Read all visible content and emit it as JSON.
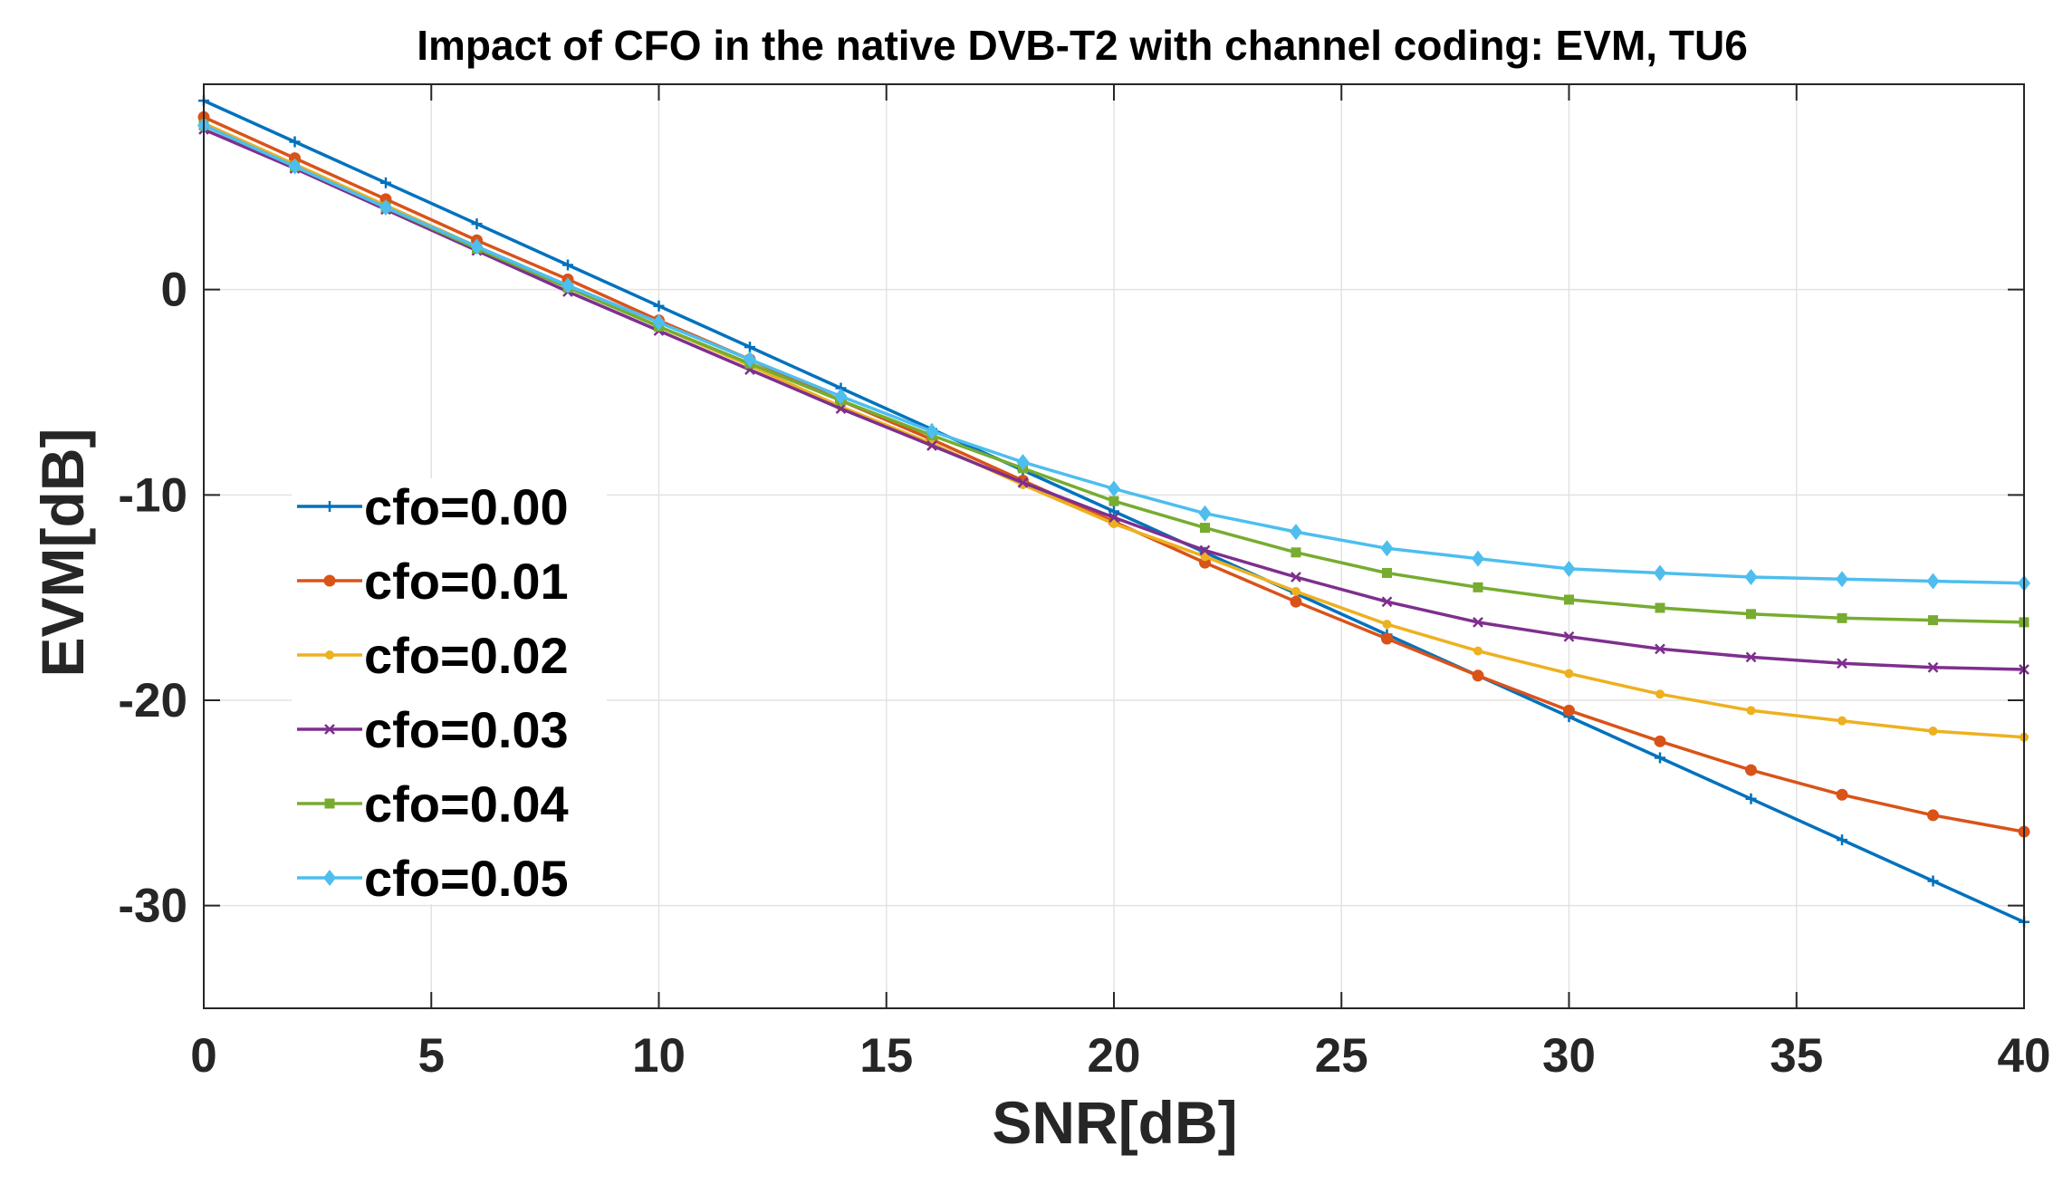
{
  "chart_data": {
    "type": "line",
    "title": "Impact of CFO in the native DVB-T2 with channel coding: EVM, TU6",
    "xlabel": "SNR[dB]",
    "ylabel": "EVM[dB]",
    "xlim": [
      0,
      40
    ],
    "ylim": [
      -35,
      10
    ],
    "xticks": [
      0,
      5,
      10,
      15,
      20,
      25,
      30,
      35,
      40
    ],
    "yticks": [
      0,
      -10,
      -20,
      -30
    ],
    "grid": true,
    "legend_position": "left",
    "x": [
      0,
      2,
      4,
      6,
      8,
      10,
      12,
      14,
      16,
      18,
      20,
      22,
      24,
      26,
      28,
      30,
      32,
      34,
      36,
      38,
      40
    ],
    "series": [
      {
        "name": "cfo=0.00",
        "color": "#0072BD",
        "marker": "plus",
        "values": [
          9.2,
          7.2,
          5.2,
          3.2,
          1.2,
          -0.8,
          -2.8,
          -4.8,
          -6.8,
          -8.8,
          -10.8,
          -12.8,
          -14.8,
          -16.8,
          -18.8,
          -20.8,
          -22.8,
          -24.8,
          -26.8,
          -28.8,
          -30.8
        ]
      },
      {
        "name": "cfo=0.01",
        "color": "#D95319",
        "marker": "circle",
        "values": [
          8.4,
          6.4,
          4.4,
          2.4,
          0.5,
          -1.5,
          -3.4,
          -5.4,
          -7.3,
          -9.3,
          -11.3,
          -13.3,
          -15.2,
          -17.0,
          -18.8,
          -20.5,
          -22.0,
          -23.4,
          -24.6,
          -25.6,
          -26.4
        ]
      },
      {
        "name": "cfo=0.02",
        "color": "#EDB120",
        "marker": "dot",
        "values": [
          8.1,
          6.1,
          4.1,
          2.1,
          0.2,
          -1.8,
          -3.7,
          -5.7,
          -7.5,
          -9.5,
          -11.4,
          -13.0,
          -14.7,
          -16.3,
          -17.6,
          -18.7,
          -19.7,
          -20.5,
          -21.0,
          -21.5,
          -21.8
        ]
      },
      {
        "name": "cfo=0.03",
        "color": "#7E2F8E",
        "marker": "x",
        "values": [
          7.8,
          5.9,
          3.9,
          1.9,
          -0.1,
          -2.0,
          -3.9,
          -5.8,
          -7.6,
          -9.4,
          -11.1,
          -12.7,
          -14.0,
          -15.2,
          -16.2,
          -16.9,
          -17.5,
          -17.9,
          -18.2,
          -18.4,
          -18.5
        ]
      },
      {
        "name": "cfo=0.04",
        "color": "#77AC30",
        "marker": "square",
        "values": [
          8.0,
          6.0,
          4.0,
          2.0,
          0.1,
          -1.8,
          -3.6,
          -5.4,
          -7.1,
          -8.7,
          -10.3,
          -11.6,
          -12.8,
          -13.8,
          -14.5,
          -15.1,
          -15.5,
          -15.8,
          -16.0,
          -16.1,
          -16.2
        ]
      },
      {
        "name": "cfo=0.05",
        "color": "#4DBEEE",
        "marker": "diamond",
        "values": [
          8.0,
          6.0,
          4.0,
          2.1,
          0.2,
          -1.6,
          -3.4,
          -5.2,
          -6.9,
          -8.4,
          -9.7,
          -10.9,
          -11.8,
          -12.6,
          -13.1,
          -13.6,
          -13.8,
          -14.0,
          -14.1,
          -14.2,
          -14.3
        ]
      }
    ]
  }
}
